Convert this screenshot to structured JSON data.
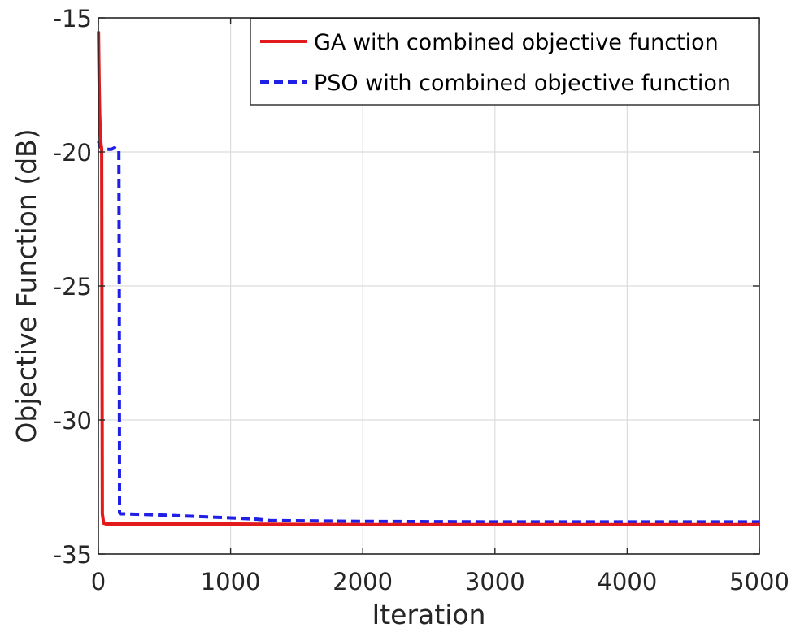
{
  "chart_data": {
    "type": "line",
    "title": "",
    "xlabel": "Iteration",
    "ylabel": "Objective Function (dB)",
    "xlim": [
      0,
      5000
    ],
    "ylim": [
      -35,
      -15
    ],
    "x_ticks": [
      0,
      1000,
      2000,
      3000,
      4000,
      5000
    ],
    "x_tick_labels": [
      "0",
      "1000",
      "2000",
      "3000",
      "4000",
      "5000"
    ],
    "y_ticks": [
      -35,
      -30,
      -25,
      -20,
      -15
    ],
    "y_tick_labels": [
      "-35",
      "-30",
      "-25",
      "-20",
      "-15"
    ],
    "grid": true,
    "legend_position": "top-right",
    "series": [
      {
        "name": "GA with combined objective function",
        "color": "#e31a1c",
        "style": "solid",
        "x": [
          1,
          3,
          6,
          10,
          15,
          20,
          25,
          30,
          40,
          60,
          100,
          500,
          1000,
          2000,
          3000,
          4000,
          5000
        ],
        "y": [
          -15.5,
          -16.4,
          -17.5,
          -18.6,
          -19.3,
          -19.7,
          -19.9,
          -33.5,
          -33.85,
          -33.88,
          -33.88,
          -33.88,
          -33.88,
          -33.9,
          -33.9,
          -33.9,
          -33.9
        ]
      },
      {
        "name": "PSO with combined objective function",
        "color": "#1f1fe6",
        "style": "dashed",
        "x": [
          1,
          10,
          20,
          50,
          100,
          120,
          150,
          155,
          158,
          160,
          165,
          200,
          500,
          1000,
          1200,
          1300,
          2000,
          3000,
          4000,
          5000
        ],
        "y": [
          -19.6,
          -19.75,
          -19.85,
          -19.9,
          -19.9,
          -19.85,
          -19.9,
          -19.9,
          -25,
          -33.45,
          -33.5,
          -33.5,
          -33.55,
          -33.65,
          -33.7,
          -33.75,
          -33.78,
          -33.8,
          -33.8,
          -33.8
        ]
      }
    ]
  }
}
